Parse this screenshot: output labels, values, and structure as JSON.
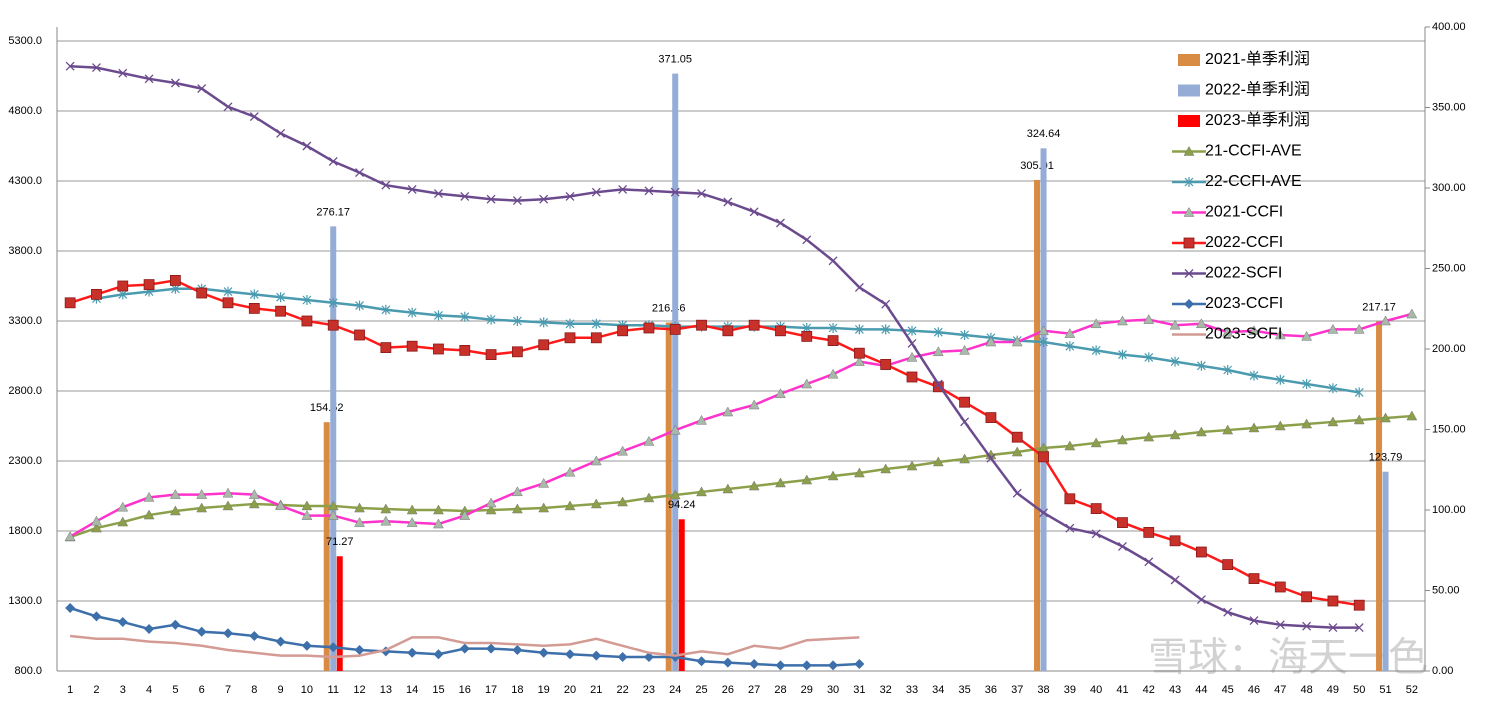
{
  "chart_data": {
    "type": "bar_line",
    "watermark": "雪球：海天一色",
    "categories": [
      "1",
      "2",
      "3",
      "4",
      "5",
      "6",
      "7",
      "8",
      "9",
      "10",
      "11",
      "12",
      "13",
      "14",
      "15",
      "16",
      "17",
      "18",
      "19",
      "20",
      "21",
      "22",
      "23",
      "24",
      "25",
      "26",
      "27",
      "28",
      "29",
      "30",
      "31",
      "32",
      "33",
      "34",
      "35",
      "36",
      "37",
      "38",
      "39",
      "40",
      "41",
      "42",
      "43",
      "44",
      "45",
      "46",
      "47",
      "48",
      "49",
      "50",
      "51",
      "52"
    ],
    "ylim": [
      800,
      5400
    ],
    "yticks": [
      {
        "value": 800,
        "label": "800.0"
      },
      {
        "value": 1300,
        "label": "1300.0"
      },
      {
        "value": 1800,
        "label": "1800.0"
      },
      {
        "value": 2300,
        "label": "2300.0"
      },
      {
        "value": 2800,
        "label": "2800.0"
      },
      {
        "value": 3300,
        "label": "3300.0"
      },
      {
        "value": 3800,
        "label": "3800.0"
      },
      {
        "value": 4300,
        "label": "4300.0"
      },
      {
        "value": 4800,
        "label": "4800.0"
      },
      {
        "value": 5300,
        "label": "5300.0"
      }
    ],
    "y2lim": [
      0,
      400
    ],
    "y2ticks": [
      {
        "value": 0,
        "label": "0.00"
      },
      {
        "value": 50,
        "label": "50.00"
      },
      {
        "value": 100,
        "label": "100.00"
      },
      {
        "value": 150,
        "label": "150.00"
      },
      {
        "value": 200,
        "label": "200.00"
      },
      {
        "value": 250,
        "label": "250.00"
      },
      {
        "value": 300,
        "label": "300.00"
      },
      {
        "value": 350,
        "label": "350.00"
      },
      {
        "value": 400,
        "label": "400.00"
      }
    ],
    "grid": true,
    "series": [
      {
        "name": "2021-单季利润",
        "kind": "bar",
        "axis": "y2",
        "color": "#d98b43",
        "values": [
          null,
          null,
          null,
          null,
          null,
          null,
          null,
          null,
          null,
          null,
          154.52,
          null,
          null,
          null,
          null,
          null,
          null,
          null,
          null,
          null,
          null,
          null,
          null,
          216.46,
          null,
          null,
          null,
          null,
          null,
          null,
          null,
          null,
          null,
          null,
          null,
          null,
          null,
          305.01,
          null,
          null,
          null,
          null,
          null,
          null,
          null,
          null,
          null,
          null,
          null,
          null,
          217.17,
          null
        ]
      },
      {
        "name": "2022-单季利润",
        "kind": "bar",
        "axis": "y2",
        "color": "#95acd6",
        "values": [
          null,
          null,
          null,
          null,
          null,
          null,
          null,
          null,
          null,
          null,
          276.17,
          null,
          null,
          null,
          null,
          null,
          null,
          null,
          null,
          null,
          null,
          null,
          null,
          371.05,
          null,
          null,
          null,
          null,
          null,
          null,
          null,
          null,
          null,
          null,
          null,
          null,
          null,
          324.64,
          null,
          null,
          null,
          null,
          null,
          null,
          null,
          null,
          null,
          null,
          null,
          null,
          123.79,
          null
        ]
      },
      {
        "name": "2023-单季利润",
        "kind": "bar",
        "axis": "y2",
        "color": "#ff0000",
        "values": [
          null,
          null,
          null,
          null,
          null,
          null,
          null,
          null,
          null,
          null,
          71.27,
          null,
          null,
          null,
          null,
          null,
          null,
          null,
          null,
          null,
          null,
          null,
          null,
          94.24,
          null,
          null,
          null,
          null,
          null,
          null,
          null,
          null,
          null,
          null,
          null,
          null,
          null,
          null,
          null,
          null,
          null,
          null,
          null,
          null,
          null,
          null,
          null,
          null,
          null,
          null,
          null,
          null
        ]
      },
      {
        "name": "21-CCFI-AVE",
        "kind": "line",
        "marker": "triangle",
        "color": "#8ca04a",
        "marker_color": "#8ca04a",
        "values": [
          1757,
          1821,
          1864,
          1914,
          1943,
          1964,
          1979,
          1993,
          1986,
          1979,
          1979,
          1964,
          1957,
          1950,
          1950,
          1943,
          1950,
          1957,
          1964,
          1979,
          1993,
          2007,
          2036,
          2057,
          2079,
          2100,
          2121,
          2143,
          2164,
          2193,
          2214,
          2243,
          2264,
          2293,
          2314,
          2343,
          2364,
          2393,
          2407,
          2429,
          2450,
          2471,
          2486,
          2507,
          2521,
          2536,
          2550,
          2564,
          2579,
          2593,
          2607,
          2621
        ]
      },
      {
        "name": "22-CCFI-AVE",
        "kind": "line",
        "marker": "star",
        "color": "#4a9bb0",
        "marker_color": "#4a9bb0",
        "values": [
          null,
          3460,
          3490,
          3510,
          3530,
          3530,
          3510,
          3490,
          3470,
          3450,
          3430,
          3410,
          3380,
          3360,
          3340,
          3330,
          3310,
          3300,
          3290,
          3280,
          3280,
          3270,
          3270,
          3260,
          3260,
          3260,
          3260,
          3260,
          3250,
          3250,
          3240,
          3240,
          3230,
          3220,
          3200,
          3180,
          3160,
          3150,
          3120,
          3090,
          3060,
          3040,
          3010,
          2980,
          2950,
          2910,
          2880,
          2850,
          2820,
          2790,
          null,
          null
        ]
      },
      {
        "name": "2021-CCFI",
        "kind": "line",
        "marker": "triangle",
        "color": "#ff33cc",
        "marker_color": "#a9b9a9",
        "values": [
          1760,
          1870,
          1970,
          2040,
          2060,
          2060,
          2070,
          2060,
          1980,
          1910,
          1910,
          1860,
          1870,
          1860,
          1850,
          1910,
          2000,
          2080,
          2140,
          2220,
          2300,
          2370,
          2440,
          2520,
          2590,
          2650,
          2700,
          2780,
          2850,
          2920,
          3010,
          2980,
          3040,
          3080,
          3090,
          3150,
          3150,
          3230,
          3210,
          3280,
          3300,
          3310,
          3270,
          3280,
          3220,
          3230,
          3200,
          3190,
          3240,
          3240,
          3300,
          3350
        ]
      },
      {
        "name": "2022-CCFI",
        "kind": "line",
        "marker": "square",
        "color": "#ff1a1a",
        "marker_color": "#c8302a",
        "values": [
          3430,
          3490,
          3550,
          3560,
          3590,
          3500,
          3430,
          3390,
          3370,
          3300,
          3270,
          3200,
          3110,
          3120,
          3100,
          3090,
          3060,
          3080,
          3130,
          3180,
          3180,
          3230,
          3250,
          3240,
          3270,
          3230,
          3270,
          3230,
          3190,
          3160,
          3070,
          2990,
          2900,
          2830,
          2720,
          2610,
          2470,
          2330,
          2030,
          1960,
          1860,
          1790,
          1730,
          1650,
          1560,
          1460,
          1400,
          1330,
          1300,
          1270,
          null,
          null
        ]
      },
      {
        "name": "2022-SCFI",
        "kind": "line",
        "marker": "x",
        "color": "#6b4a8e",
        "marker_color": "#6b4a8e",
        "values": [
          5120,
          5110,
          5070,
          5030,
          5000,
          4960,
          4830,
          4760,
          4640,
          4550,
          4440,
          4360,
          4270,
          4240,
          4210,
          4190,
          4170,
          4160,
          4170,
          4190,
          4220,
          4240,
          4230,
          4220,
          4210,
          4150,
          4080,
          4000,
          3880,
          3730,
          3540,
          3420,
          3140,
          2850,
          2580,
          2320,
          2070,
          1930,
          1820,
          1780,
          1690,
          1580,
          1450,
          1310,
          1220,
          1160,
          1130,
          1120,
          1110,
          1110,
          null,
          null
        ]
      },
      {
        "name": "2023-CCFI",
        "kind": "line",
        "marker": "diamond",
        "color": "#3d6faa",
        "marker_color": "#3d6faa",
        "values": [
          1250,
          1190,
          1150,
          1100,
          1130,
          1080,
          1070,
          1050,
          1010,
          980,
          970,
          950,
          940,
          930,
          920,
          960,
          960,
          950,
          930,
          920,
          910,
          900,
          900,
          900,
          870,
          860,
          850,
          840,
          840,
          840,
          850,
          null,
          null,
          null,
          null,
          null,
          null,
          null,
          null,
          null,
          null,
          null,
          null,
          null,
          null,
          null,
          null,
          null,
          null,
          null,
          null,
          null
        ]
      },
      {
        "name": "2023-SCFI",
        "kind": "line",
        "marker": "none",
        "color": "#d49a94",
        "marker_color": "#d49a94",
        "values": [
          1050,
          1030,
          1030,
          1010,
          1000,
          980,
          950,
          930,
          910,
          910,
          900,
          910,
          950,
          1040,
          1040,
          1000,
          1000,
          990,
          980,
          990,
          1030,
          980,
          930,
          910,
          940,
          920,
          980,
          960,
          1020,
          1030,
          1040,
          null,
          null,
          null,
          null,
          null,
          null,
          null,
          null,
          null,
          null,
          null,
          null,
          null,
          null,
          null,
          null,
          null,
          null,
          null,
          null,
          null
        ]
      }
    ]
  }
}
